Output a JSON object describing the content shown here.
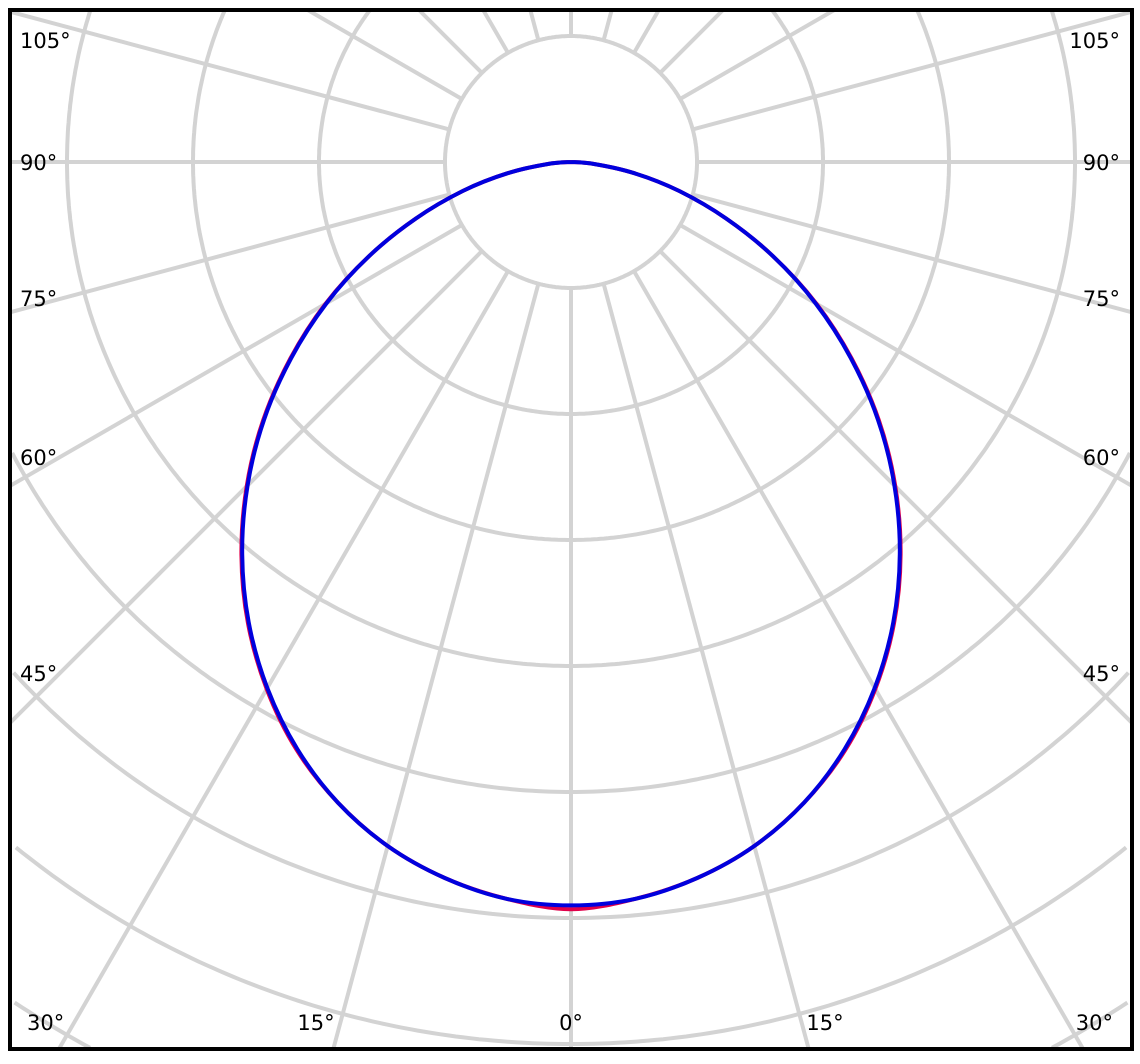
{
  "chart_data": {
    "type": "polar-line",
    "title": "",
    "grid": true,
    "grid_color": "#d3d3d3",
    "angle_step_deg": 15,
    "radial_unit_note": "",
    "angle_labels": {
      "left": [
        "105°",
        "90°",
        "75°",
        "60°",
        "45°",
        "30°"
      ],
      "bottom": [
        "15°",
        "0°",
        "15°"
      ],
      "right": [
        "105°",
        "90°",
        "75°",
        "60°",
        "45°",
        "30°"
      ]
    },
    "angles_deg": [
      0,
      5,
      10,
      15,
      20,
      25,
      30,
      35,
      40,
      45,
      50,
      55,
      60,
      65,
      70,
      75,
      80,
      85,
      90
    ],
    "series": [
      {
        "color": "#e0004a",
        "values": [
          5.93,
          5.87,
          5.77,
          5.62,
          5.41,
          5.15,
          4.83,
          4.47,
          4.07,
          3.64,
          3.19,
          2.72,
          2.25,
          1.77,
          1.31,
          0.89,
          0.51,
          0.19,
          0
        ]
      },
      {
        "color": "#0000dd",
        "values": [
          5.9,
          5.87,
          5.77,
          5.62,
          5.41,
          5.14,
          4.82,
          4.46,
          4.06,
          3.63,
          3.18,
          2.71,
          2.24,
          1.77,
          1.31,
          0.89,
          0.51,
          0.19,
          0
        ]
      }
    ]
  }
}
